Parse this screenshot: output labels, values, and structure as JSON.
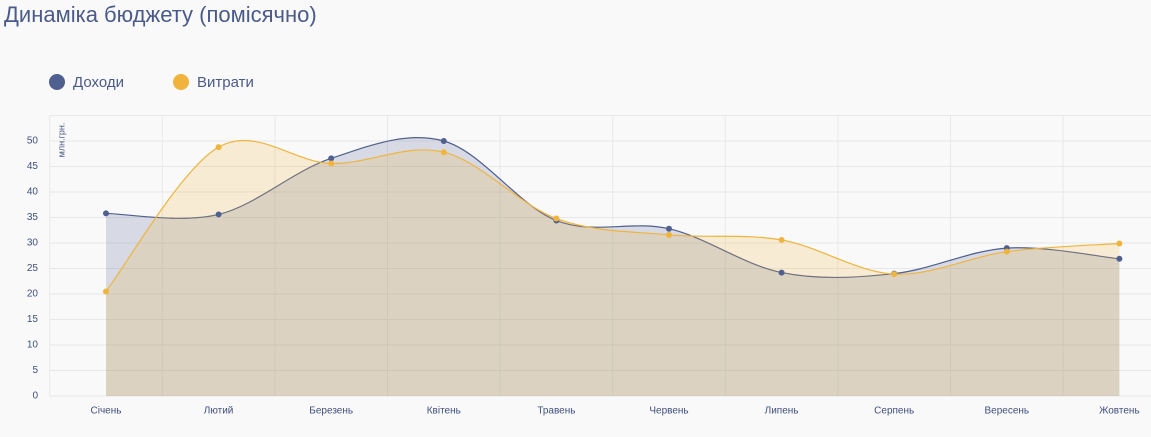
{
  "chart_data": {
    "type": "area",
    "title": "Динаміка бюджету (помісячно)",
    "y_label": "млн.грн.",
    "categories": [
      "Січень",
      "Лютий",
      "Березень",
      "Квітень",
      "Травень",
      "Червень",
      "Липень",
      "Серпень",
      "Вересень",
      "Жовтень"
    ],
    "series": [
      {
        "name": "Доходи",
        "color": "#4f5f8f",
        "values": [
          35.8,
          35.6,
          46.6,
          50,
          34.4,
          32.8,
          24.2,
          24,
          29,
          26.9
        ]
      },
      {
        "name": "Витрати",
        "color": "#f0b43c",
        "values": [
          20.5,
          48.8,
          45.6,
          47.8,
          34.8,
          31.6,
          30.6,
          23.9,
          28.3,
          29.9
        ]
      }
    ],
    "ylim": [
      0,
      55
    ],
    "yticks": [
      0,
      5,
      10,
      15,
      20,
      25,
      30,
      35,
      40,
      45,
      50
    ],
    "grid": true,
    "legend": "top-left"
  }
}
